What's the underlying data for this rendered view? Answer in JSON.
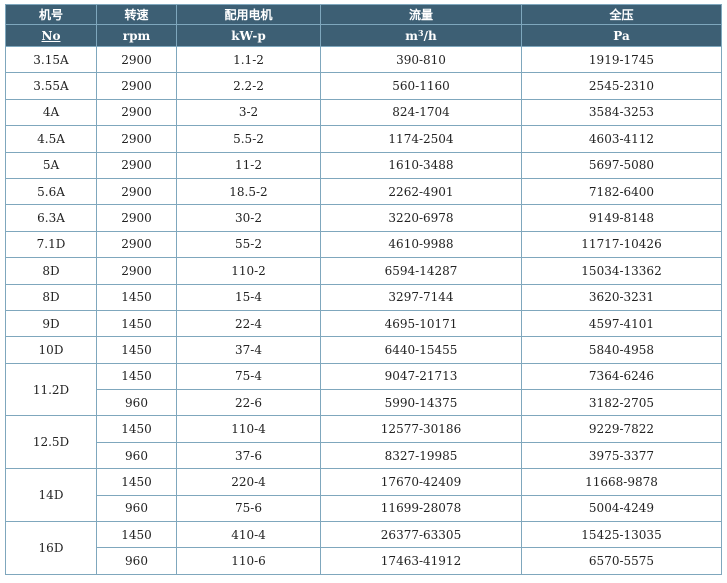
{
  "table": {
    "headers": [
      {
        "label": "机号",
        "unit": "No"
      },
      {
        "label": "转速",
        "unit": "rpm"
      },
      {
        "label": "配用电机",
        "unit": "kW-p"
      },
      {
        "label": "流量",
        "unit": "m",
        "unit_sup": "3",
        "unit_suffix": "/h"
      },
      {
        "label": "全压",
        "unit": "Pa"
      }
    ],
    "rows": [
      {
        "model": "3.15A",
        "speed": "2900",
        "motor": "1.1-2",
        "flow": "390-810",
        "pressure": "1919-1745"
      },
      {
        "model": "3.55A",
        "speed": "2900",
        "motor": "2.2-2",
        "flow": "560-1160",
        "pressure": "2545-2310"
      },
      {
        "model": "4A",
        "speed": "2900",
        "motor": "3-2",
        "flow": "824-1704",
        "pressure": "3584-3253"
      },
      {
        "model": "4.5A",
        "speed": "2900",
        "motor": "5.5-2",
        "flow": "1174-2504",
        "pressure": "4603-4112"
      },
      {
        "model": "5A",
        "speed": "2900",
        "motor": "11-2",
        "flow": "1610-3488",
        "pressure": "5697-5080"
      },
      {
        "model": "5.6A",
        "speed": "2900",
        "motor": "18.5-2",
        "flow": "2262-4901",
        "pressure": "7182-6400"
      },
      {
        "model": "6.3A",
        "speed": "2900",
        "motor": "30-2",
        "flow": "3220-6978",
        "pressure": "9149-8148"
      },
      {
        "model": "7.1D",
        "speed": "2900",
        "motor": "55-2",
        "flow": "4610-9988",
        "pressure": "11717-10426"
      },
      {
        "model": "8D",
        "speed": "2900",
        "motor": "110-2",
        "flow": "6594-14287",
        "pressure": "15034-13362"
      },
      {
        "model": "8D",
        "speed": "1450",
        "motor": "15-4",
        "flow": "3297-7144",
        "pressure": "3620-3231"
      },
      {
        "model": "9D",
        "speed": "1450",
        "motor": "22-4",
        "flow": "4695-10171",
        "pressure": "4597-4101"
      },
      {
        "model": "10D",
        "speed": "1450",
        "motor": "37-4",
        "flow": "6440-15455",
        "pressure": "5840-4958"
      },
      {
        "model": "11.2D",
        "speed": "1450",
        "motor": "75-4",
        "flow": "9047-21713",
        "pressure": "7364-6246",
        "model_rowspan": 2
      },
      {
        "speed": "960",
        "motor": "22-6",
        "flow": "5990-14375",
        "pressure": "3182-2705"
      },
      {
        "model": "12.5D",
        "speed": "1450",
        "motor": "110-4",
        "flow": "12577-30186",
        "pressure": "9229-7822",
        "model_rowspan": 2
      },
      {
        "speed": "960",
        "motor": "37-6",
        "flow": "8327-19985",
        "pressure": "3975-3377"
      },
      {
        "model": "14D",
        "speed": "1450",
        "motor": "220-4",
        "flow": "17670-42409",
        "pressure": "11668-9878",
        "model_rowspan": 2
      },
      {
        "speed": "960",
        "motor": "75-6",
        "flow": "11699-28078",
        "pressure": "5004-4249"
      },
      {
        "model": "16D",
        "speed": "1450",
        "motor": "410-4",
        "flow": "26377-63305",
        "pressure": "15425-13035",
        "model_rowspan": 2
      },
      {
        "speed": "960",
        "motor": "110-6",
        "flow": "17463-41912",
        "pressure": "6570-5575"
      }
    ]
  }
}
